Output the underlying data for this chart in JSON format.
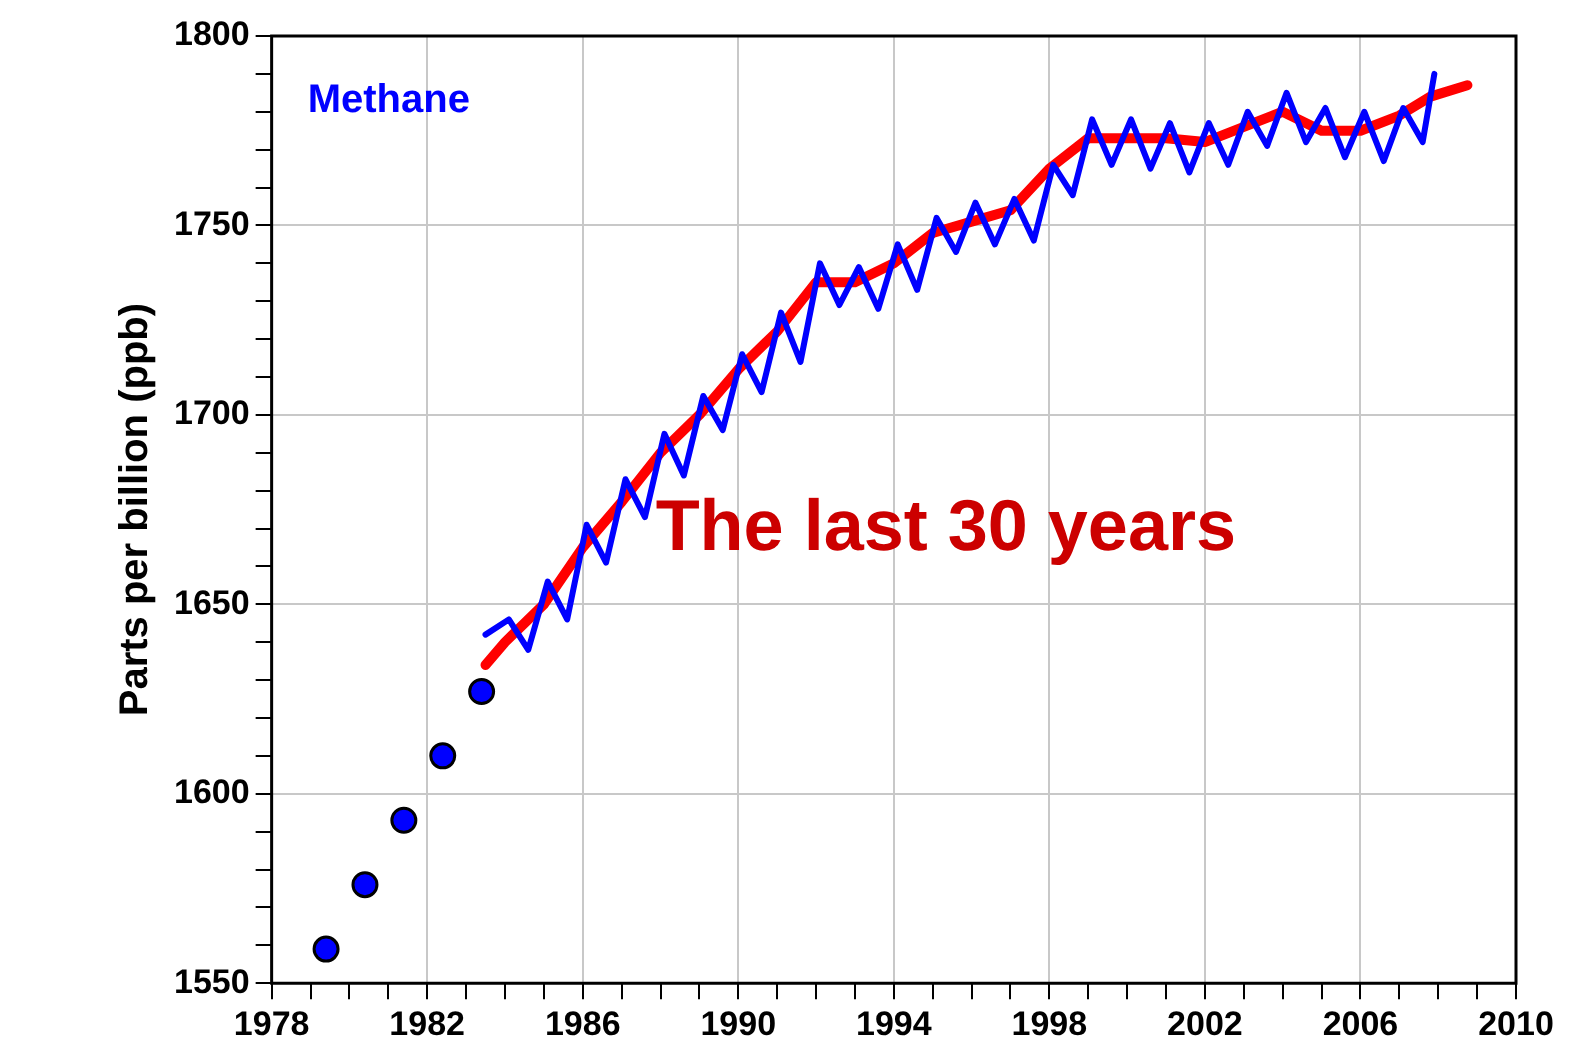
{
  "chart_data": {
    "type": "line",
    "ylabel": "Parts per billion (ppb)",
    "xlim": [
      1978,
      2010
    ],
    "xticks": [
      1978,
      {
        "value": 1979,
        "label": null
      },
      {
        "value": 1980,
        "label": null
      },
      {
        "value": 1981,
        "label": null
      },
      1982,
      {
        "value": 1983,
        "label": null
      },
      {
        "value": 1984,
        "label": null
      },
      {
        "value": 1985,
        "label": null
      },
      1986,
      {
        "value": 1987,
        "label": null
      },
      {
        "value": 1988,
        "label": null
      },
      {
        "value": 1989,
        "label": null
      },
      1990,
      {
        "value": 1991,
        "label": null
      },
      {
        "value": 1992,
        "label": null
      },
      {
        "value": 1993,
        "label": null
      },
      1994,
      {
        "value": 1995,
        "label": null
      },
      {
        "value": 1996,
        "label": null
      },
      {
        "value": 1997,
        "label": null
      },
      1998,
      {
        "value": 1999,
        "label": null
      },
      {
        "value": 2000,
        "label": null
      },
      {
        "value": 2001,
        "label": null
      },
      2002,
      {
        "value": 2003,
        "label": null
      },
      {
        "value": 2004,
        "label": null
      },
      {
        "value": 2005,
        "label": null
      },
      2006,
      {
        "value": 2007,
        "label": null
      },
      {
        "value": 2008,
        "label": null
      },
      {
        "value": 2009,
        "label": null
      },
      2010
    ],
    "ylim": [
      1550,
      1800
    ],
    "yticks": [
      1550,
      {
        "value": 1560,
        "label": null
      },
      {
        "value": 1570,
        "label": null
      },
      {
        "value": 1580,
        "label": null
      },
      {
        "value": 1590,
        "label": null
      },
      1600,
      {
        "value": 1610,
        "label": null
      },
      {
        "value": 1620,
        "label": null
      },
      {
        "value": 1630,
        "label": null
      },
      {
        "value": 1640,
        "label": null
      },
      1650,
      {
        "value": 1660,
        "label": null
      },
      {
        "value": 1670,
        "label": null
      },
      {
        "value": 1680,
        "label": null
      },
      {
        "value": 1690,
        "label": null
      },
      1700,
      {
        "value": 1710,
        "label": null
      },
      {
        "value": 1720,
        "label": null
      },
      {
        "value": 1730,
        "label": null
      },
      {
        "value": 1740,
        "label": null
      },
      1750,
      {
        "value": 1760,
        "label": null
      },
      {
        "value": 1770,
        "label": null
      },
      {
        "value": 1780,
        "label": null
      },
      {
        "value": 1790,
        "label": null
      },
      1800
    ],
    "grid": true,
    "legend": "top left",
    "annotations": [
      "The last 30 years"
    ],
    "series": [
      {
        "name": "Methane",
        "color": "#0000ff",
        "x": [
          1983.5,
          1984.1,
          1984.6,
          1985.1,
          1985.6,
          1986.1,
          1986.6,
          1987.1,
          1987.6,
          1988.1,
          1988.6,
          1989.1,
          1989.6,
          1990.1,
          1990.6,
          1991.1,
          1991.6,
          1992.1,
          1992.6,
          1993.1,
          1993.6,
          1994.1,
          1994.6,
          1995.1,
          1995.6,
          1996.1,
          1996.6,
          1997.1,
          1997.6,
          1998.1,
          1998.6,
          1999.1,
          1999.6,
          2000.1,
          2000.6,
          2001.1,
          2001.6,
          2002.1,
          2002.6,
          2003.1,
          2003.6,
          2004.1,
          2004.6,
          2005.1,
          2005.6,
          2006.1,
          2006.6,
          2007.1,
          2007.6,
          2007.9
        ],
        "values": [
          1642,
          1646,
          1638,
          1656,
          1646,
          1671,
          1661,
          1683,
          1673,
          1695,
          1684,
          1705,
          1696,
          1716,
          1706,
          1727,
          1714,
          1740,
          1729,
          1739,
          1728,
          1745,
          1733,
          1752,
          1743,
          1756,
          1745,
          1757,
          1746,
          1766,
          1758,
          1778,
          1766,
          1778,
          1765,
          1777,
          1764,
          1777,
          1766,
          1780,
          1771,
          1785,
          1772,
          1781,
          1768,
          1780,
          1767,
          1781,
          1772,
          1790
        ]
      },
      {
        "type": "scatter",
        "color": "#0000ff",
        "marker": "circle",
        "x": [
          1979.4,
          1980.4,
          1981.4,
          1982.4,
          1983.4
        ],
        "values": [
          1559,
          1576,
          1593,
          1610,
          1627
        ]
      },
      {
        "color": "#ff0000",
        "x": [
          1983.5,
          1984,
          1985,
          1986,
          1987,
          1988,
          1989,
          1990,
          1991,
          1992,
          1993,
          1994,
          1995,
          1996,
          1997,
          1998,
          1999,
          2000,
          2001,
          2002,
          2003,
          2004,
          2005,
          2006,
          2007,
          2007.8,
          2008.75
        ],
        "values": [
          1634,
          1640,
          1650,
          1665,
          1677,
          1690,
          1700,
          1712,
          1722,
          1735,
          1735,
          1740,
          1748,
          1751,
          1754,
          1765,
          1773,
          1773,
          1773,
          1772,
          1776,
          1780,
          1775,
          1775,
          1779,
          1784,
          1787
        ]
      }
    ]
  }
}
